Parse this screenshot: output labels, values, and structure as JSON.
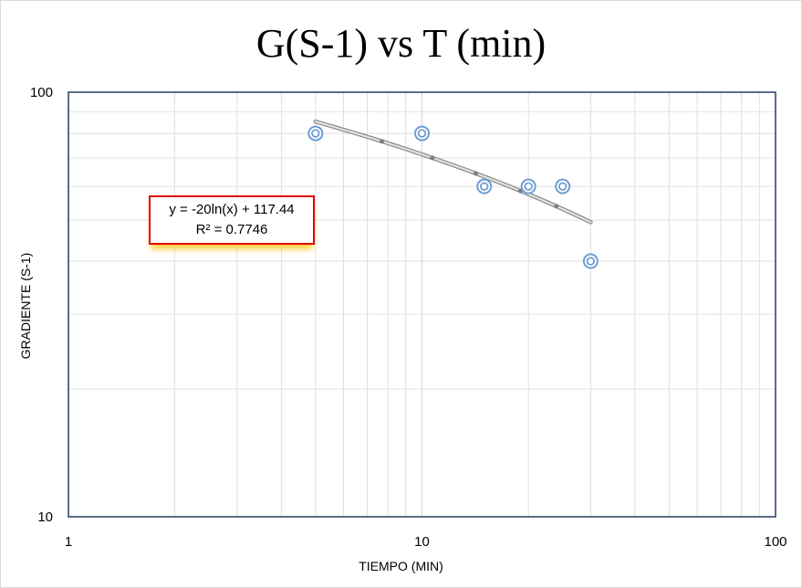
{
  "chart_data": {
    "type": "scatter",
    "title": "G(S-1) vs T (min)",
    "xlabel": "TIEMPO (MIN)",
    "ylabel": "GRADIENTE (S-1)",
    "xscale": "log",
    "yscale": "log",
    "xlim": [
      1,
      100
    ],
    "ylim": [
      10,
      100
    ],
    "xticks": [
      "1",
      "10",
      "100"
    ],
    "yticks": [
      "100",
      "10"
    ],
    "grid": true,
    "points": [
      {
        "x": 5,
        "y": 80
      },
      {
        "x": 10,
        "y": 80
      },
      {
        "x": 15,
        "y": 60
      },
      {
        "x": 20,
        "y": 60
      },
      {
        "x": 25,
        "y": 60
      },
      {
        "x": 30,
        "y": 40
      }
    ],
    "trendline": {
      "type": "logarithmic",
      "equation": "y = -20ln(x) + 117.44",
      "r_squared": "R² = 0.7746",
      "a": -20,
      "b": 117.44,
      "x_range": [
        5,
        30
      ]
    },
    "colors": {
      "marker": "#6f9ed1",
      "trendline": "#a6a6a6",
      "axis": "#243f60",
      "grid": "#d9d9d9",
      "equation_border": "#e00000"
    }
  }
}
